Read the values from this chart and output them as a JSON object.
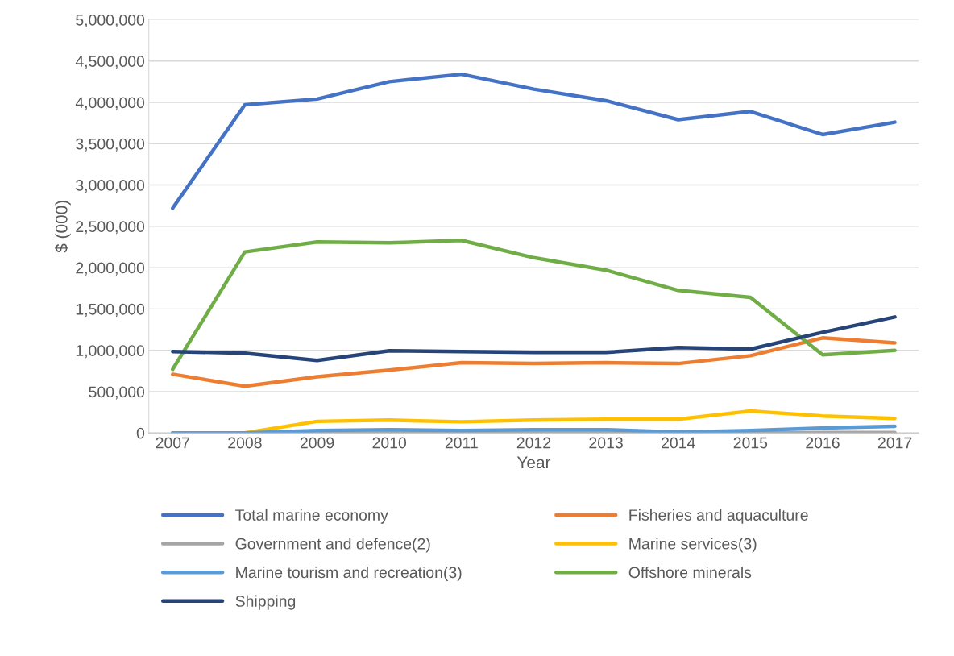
{
  "chart_data": {
    "type": "line",
    "xlabel": "Year",
    "ylabel": "$ (000)",
    "categories": [
      "2007",
      "2008",
      "2009",
      "2010",
      "2011",
      "2012",
      "2013",
      "2014",
      "2015",
      "2016",
      "2017"
    ],
    "ylim": [
      0,
      5000000
    ],
    "yticks": [
      {
        "value": 0,
        "label": "0"
      },
      {
        "value": 500000,
        "label": "500,000"
      },
      {
        "value": 1000000,
        "label": "1,000,000"
      },
      {
        "value": 1500000,
        "label": "1,500,000"
      },
      {
        "value": 2000000,
        "label": "2,000,000"
      },
      {
        "value": 2500000,
        "label": "2,500,000"
      },
      {
        "value": 3000000,
        "label": "3,000,000"
      },
      {
        "value": 3500000,
        "label": "3,500,000"
      },
      {
        "value": 4000000,
        "label": "4,000,000"
      },
      {
        "value": 4500000,
        "label": "4,500,000"
      },
      {
        "value": 5000000,
        "label": "5,000,000"
      }
    ],
    "grid": "y",
    "legend": "bottom",
    "marker": "none",
    "line_style": "solid",
    "series": [
      {
        "name": "Total marine economy",
        "color": "#4472c4",
        "values": [
          2720000,
          3970000,
          4040000,
          4250000,
          4340000,
          4160000,
          4020000,
          3790000,
          3890000,
          3610000,
          3760000
        ]
      },
      {
        "name": "Fisheries and aquaculture",
        "color": "#ed7d31",
        "values": [
          710000,
          565000,
          680000,
          760000,
          850000,
          840000,
          850000,
          840000,
          935000,
          1150000,
          1090000
        ]
      },
      {
        "name": "Government and defence(2)",
        "color": "#a5a5a5",
        "values": [
          0,
          0,
          0,
          0,
          0,
          0,
          0,
          0,
          0,
          5000,
          5000
        ]
      },
      {
        "name": "Marine services(3)",
        "color": "#ffc000",
        "values": [
          0,
          0,
          140000,
          155000,
          135000,
          155000,
          165000,
          165000,
          265000,
          205000,
          175000
        ]
      },
      {
        "name": "Marine tourism and recreation(3)",
        "color": "#5b9bd5",
        "values": [
          0,
          0,
          30000,
          40000,
          30000,
          40000,
          40000,
          10000,
          30000,
          60000,
          80000
        ]
      },
      {
        "name": "Offshore minerals",
        "color": "#70ad47",
        "values": [
          770000,
          2190000,
          2310000,
          2300000,
          2330000,
          2120000,
          1970000,
          1725000,
          1640000,
          945000,
          1000000
        ]
      },
      {
        "name": "Shipping",
        "color": "#264478",
        "values": [
          985000,
          965000,
          877000,
          994000,
          985000,
          975000,
          975000,
          1033000,
          1014000,
          1218000,
          1403000
        ]
      }
    ]
  }
}
